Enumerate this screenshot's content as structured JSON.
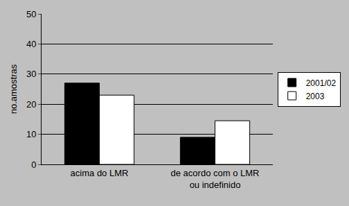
{
  "chart_data": {
    "type": "bar",
    "y_label": "no.amostras",
    "categories": [
      "acima do LMR",
      "de acordo com o LMR\nou indefinido"
    ],
    "series": [
      {
        "name": "2001/02",
        "color": "#000000",
        "values": [
          27,
          9
        ]
      },
      {
        "name": "2003",
        "color": "#ffffff",
        "values": [
          23,
          14.5
        ]
      }
    ],
    "ylim": [
      0,
      50
    ],
    "yticks": [
      0,
      10,
      20,
      30,
      40,
      50
    ],
    "grid": true,
    "legend": "right"
  }
}
